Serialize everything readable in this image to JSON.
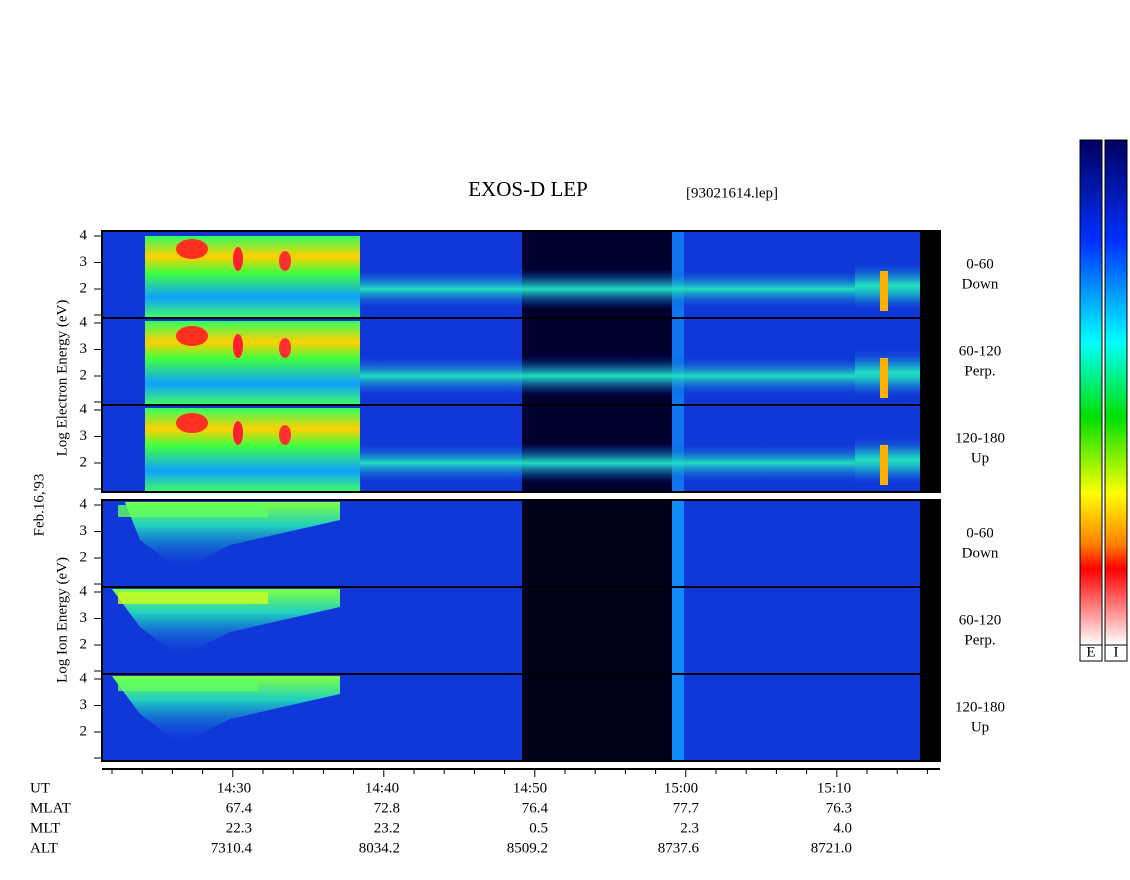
{
  "title": "EXOS-D LEP",
  "filename": "[93021614.lep]",
  "date": "Feb.16,'93",
  "electron_axis_label": "Log Electron Energy (eV)",
  "ion_axis_label": "Log Ion Energy (eV)",
  "panels": [
    {
      "yticks": [
        "4",
        "3",
        "2"
      ],
      "label": [
        "0-60",
        "Down"
      ]
    },
    {
      "yticks": [
        "4",
        "3",
        "2"
      ],
      "label": [
        "60-120",
        "Perp."
      ]
    },
    {
      "yticks": [
        "4",
        "3",
        "2"
      ],
      "label": [
        "120-180",
        "Up"
      ]
    },
    {
      "yticks": [
        "4",
        "3",
        "2"
      ],
      "label": [
        "0-60",
        "Down"
      ]
    },
    {
      "yticks": [
        "4",
        "3",
        "2"
      ],
      "label": [
        "60-120",
        "Perp."
      ]
    },
    {
      "yticks": [
        "4",
        "3",
        "2"
      ],
      "label": [
        "120-180",
        "Up"
      ]
    }
  ],
  "ephemeris": {
    "rows": [
      {
        "name": "UT",
        "values": [
          "14:30",
          "14:40",
          "14:50",
          "15:00",
          "15:10"
        ]
      },
      {
        "name": "MLAT",
        "values": [
          "67.4",
          "72.8",
          "76.4",
          "77.7",
          "76.3"
        ]
      },
      {
        "name": "MLT",
        "values": [
          "22.3",
          "23.2",
          "0.5",
          "2.3",
          "4.0"
        ]
      },
      {
        "name": "ALT",
        "values": [
          "7310.4",
          "8034.2",
          "8509.2",
          "8737.6",
          "8721.0"
        ]
      }
    ]
  },
  "colorbars": [
    "E",
    "I"
  ]
}
